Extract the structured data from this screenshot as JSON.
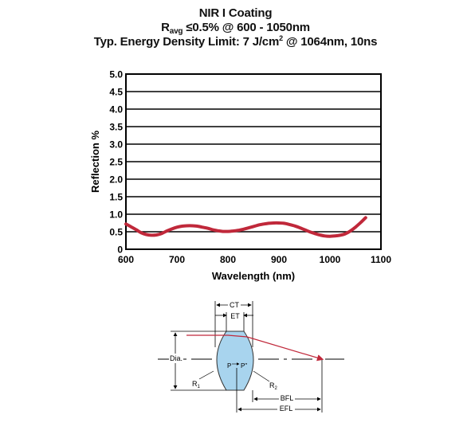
{
  "title": {
    "line1": "NIR I Coating",
    "line2_prefix": "R",
    "line2_sub": "avg",
    "line2_rest": " ≤0.5% @ 600 - 1050nm",
    "line3_prefix": "Typ. Energy Density Limit: 7 J/cm",
    "line3_sup": "2",
    "line3_rest": " @ 1064nm, 10ns"
  },
  "chart_data": {
    "type": "line",
    "title": "NIR I Coating",
    "xlabel": "Wavelength (nm)",
    "ylabel": "Reflection %",
    "xlim": [
      600,
      1100
    ],
    "ylim": [
      0,
      5.0
    ],
    "xticks": [
      600,
      700,
      800,
      900,
      1000,
      1100
    ],
    "yticks": [
      0,
      0.5,
      1.0,
      1.5,
      2.0,
      2.5,
      3.0,
      3.5,
      4.0,
      4.5,
      5.0
    ],
    "ytick_labels": [
      "0",
      "0.5",
      "1.0",
      "1.5",
      "2.0",
      "2.5",
      "3.0",
      "3.5",
      "4.0",
      "4.5",
      "5.0"
    ],
    "grid": "horizontal",
    "series_color": "#c0283a",
    "series": [
      {
        "x": [
          600,
          610,
          620,
          630,
          640,
          650,
          660,
          670,
          680,
          690,
          700,
          710,
          720,
          730,
          740,
          750,
          760,
          770,
          780,
          790,
          800,
          810,
          820,
          830,
          840,
          850,
          860,
          870,
          880,
          890,
          900,
          910,
          920,
          930,
          940,
          950,
          960,
          970,
          980,
          990,
          1000,
          1010,
          1020,
          1030,
          1040,
          1050,
          1060,
          1070
        ],
        "y": [
          0.72,
          0.64,
          0.56,
          0.47,
          0.42,
          0.4,
          0.41,
          0.45,
          0.52,
          0.58,
          0.63,
          0.66,
          0.67,
          0.67,
          0.66,
          0.63,
          0.6,
          0.56,
          0.53,
          0.51,
          0.51,
          0.52,
          0.54,
          0.57,
          0.61,
          0.65,
          0.69,
          0.72,
          0.74,
          0.75,
          0.75,
          0.74,
          0.71,
          0.67,
          0.62,
          0.56,
          0.5,
          0.45,
          0.41,
          0.38,
          0.37,
          0.38,
          0.4,
          0.44,
          0.52,
          0.63,
          0.76,
          0.9
        ]
      }
    ]
  },
  "diagram": {
    "labels": {
      "ct": "CT",
      "et": "ET",
      "dia": "Dia.",
      "p": "P",
      "p_prime": "P\"",
      "r1": "R",
      "r1_sub": "1",
      "r2": "R",
      "r2_sub": "2",
      "bfl": "BFL",
      "efl": "EFL"
    },
    "lens_fill": "#a8d4ee",
    "ray_color": "#c0283a"
  }
}
